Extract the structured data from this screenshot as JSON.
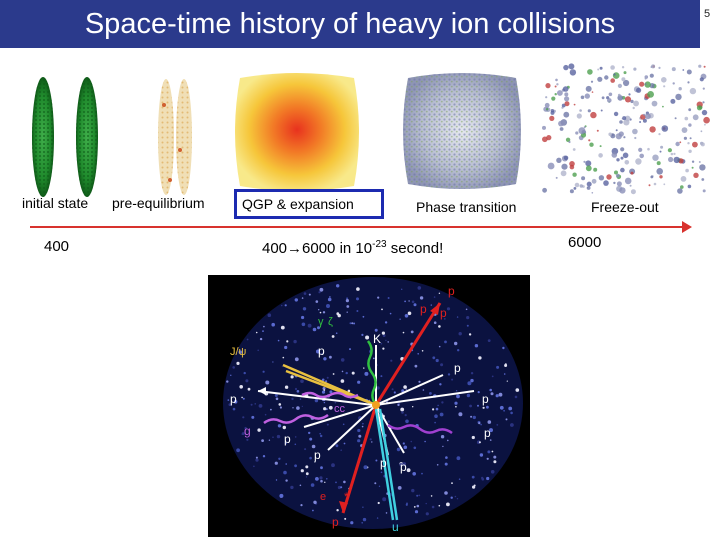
{
  "slide": {
    "title": "Space-time history of heavy ion collisions",
    "number": "5"
  },
  "stages": {
    "initial_state": "initial state",
    "pre_equilibrium": "pre-equilibrium",
    "qgp": "QGP & expansion",
    "phase_transition": "Phase transition",
    "freeze_out": "Freeze-out"
  },
  "multiplicity": {
    "start": "400",
    "range_start": "400",
    "range_end": "6000 in 10",
    "exponent": "-23",
    "range_suffix": " second!",
    "end": "6000"
  },
  "event_labels": {
    "p1": "p",
    "p2": "p",
    "p3": "p",
    "p4": "p",
    "p5": "p",
    "p6": "p",
    "p7": "p",
    "p8": "p",
    "p9": "p",
    "p10": "p",
    "p11": "p",
    "p12": "p",
    "p13": "p",
    "k": "K",
    "jpsi": "J/ψ",
    "g": "g",
    "cc": "cc",
    "e": "e",
    "u": "u",
    "gamma": "γ",
    "star": "*",
    "zeta": "ζ"
  },
  "colors": {
    "title_bar": "#2b3a8c",
    "qgp_box": "#1c2ab0",
    "time_arrow": "#d8322e"
  }
}
